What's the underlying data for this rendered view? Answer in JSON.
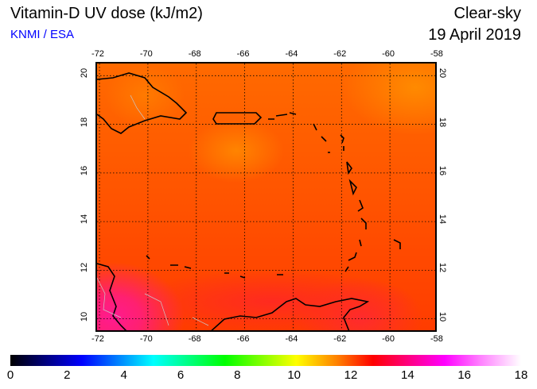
{
  "header": {
    "title": "Vitamin-D UV dose (kJ/m2)",
    "credit": "KNMI / ESA",
    "sky": "Clear-sky",
    "date": "19 April 2019"
  },
  "map": {
    "lon_ticks": [
      "-72",
      "-70",
      "-68",
      "-66",
      "-64",
      "-62",
      "-60",
      "-58"
    ],
    "lat_ticks": [
      "20",
      "18",
      "16",
      "14",
      "12",
      "10"
    ],
    "lon_range": [
      -72.1,
      -58
    ],
    "lat_range": [
      9.4,
      20.5
    ]
  },
  "colorbar": {
    "ticks": [
      "0",
      "2",
      "4",
      "6",
      "8",
      "10",
      "12",
      "14",
      "16",
      "18"
    ],
    "min": 0,
    "max": 18,
    "unit": "kJ/m2"
  }
}
